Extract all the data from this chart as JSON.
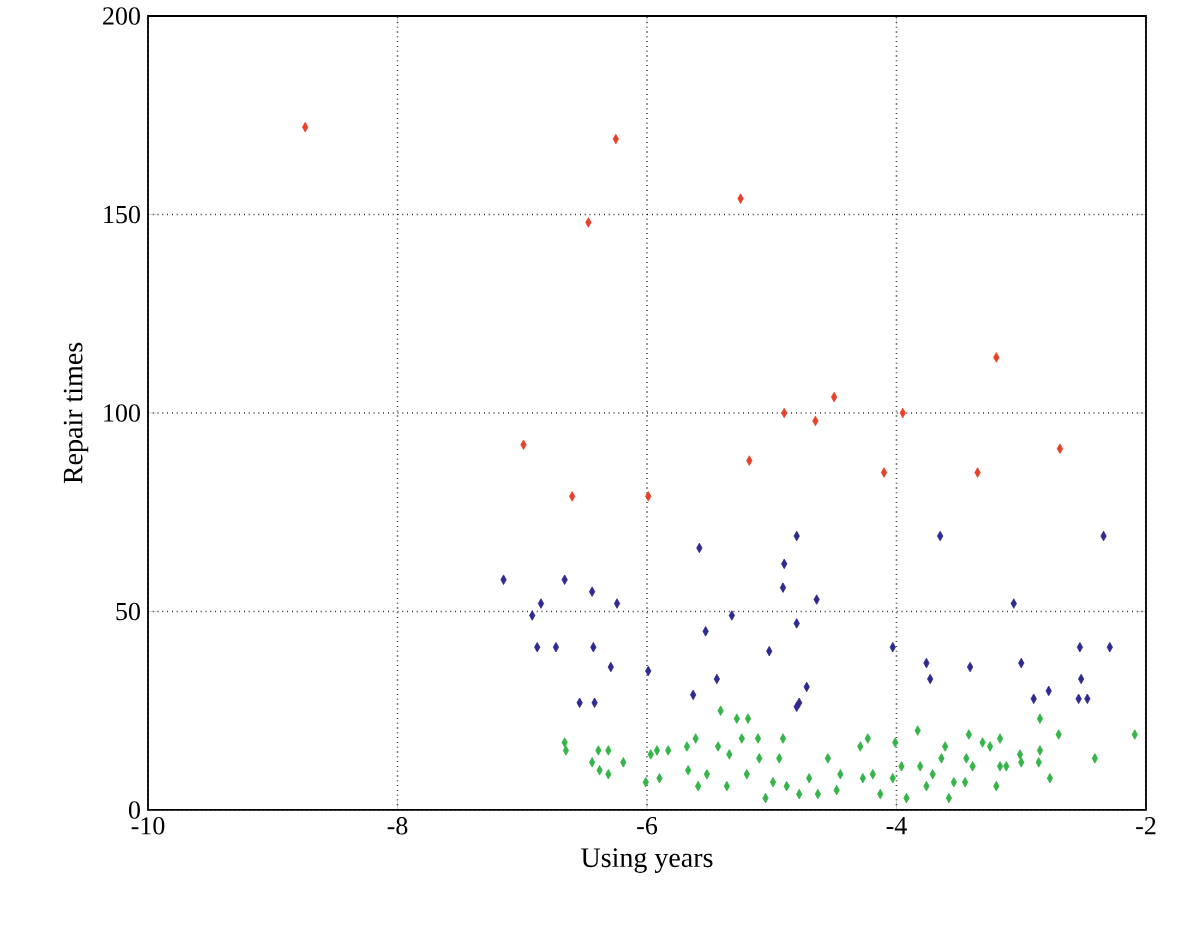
{
  "chart_data": {
    "type": "scatter",
    "xlabel": "Using years",
    "ylabel": "Repair times",
    "xlim": [
      -10,
      -2
    ],
    "ylim": [
      0,
      200
    ],
    "xticks": [
      -10,
      -8,
      -6,
      -4,
      -2
    ],
    "yticks": [
      0,
      50,
      100,
      150,
      200
    ],
    "grid": true,
    "marker": "diamond",
    "series": [
      {
        "color": "#e8412a",
        "x": [
          -8.74,
          -6.47,
          -6.25,
          -5.25,
          -6.99,
          -4.9,
          -4.65,
          -4.5,
          -3.95,
          -3.2,
          -5.18,
          -4.1,
          -3.35,
          -2.69,
          -6.6,
          -5.99
        ],
        "values": [
          172,
          148,
          169,
          154,
          92,
          100,
          98,
          104,
          100,
          114,
          88,
          85,
          85,
          91,
          79,
          79
        ]
      },
      {
        "color": "#2e2a8f",
        "x": [
          -7.15,
          -6.66,
          -6.85,
          -6.92,
          -6.44,
          -6.24,
          -6.88,
          -6.73,
          -6.43,
          -6.29,
          -5.99,
          -6.54,
          -6.42,
          -5.58,
          -5.53,
          -5.32,
          -5.44,
          -5.63,
          -5.02,
          -4.8,
          -4.9,
          -4.91,
          -4.64,
          -4.8,
          -4.72,
          -4.78,
          -4.8,
          -4.03,
          -3.65,
          -3.76,
          -3.73,
          -3.41,
          -3.06,
          -3.0,
          -2.9,
          -2.78,
          -2.53,
          -2.29,
          -2.52,
          -2.54,
          -2.47,
          -2.34
        ],
        "values": [
          58,
          58,
          52,
          49,
          55,
          52,
          41,
          41,
          41,
          36,
          35,
          27,
          27,
          66,
          45,
          49,
          33,
          29,
          40,
          69,
          62,
          56,
          53,
          47,
          31,
          27,
          26,
          41,
          69,
          37,
          33,
          36,
          52,
          37,
          28,
          30,
          41,
          41,
          33,
          28,
          28,
          69
        ]
      },
      {
        "color": "#35b44a",
        "x": [
          -6.66,
          -6.65,
          -6.44,
          -6.39,
          -6.38,
          -6.31,
          -6.31,
          -6.19,
          -6.01,
          -5.97,
          -5.92,
          -5.83,
          -5.9,
          -5.68,
          -5.61,
          -5.67,
          -5.59,
          -5.52,
          -5.43,
          -5.41,
          -5.34,
          -5.36,
          -5.28,
          -5.24,
          -5.19,
          -5.2,
          -5.11,
          -5.1,
          -5.05,
          -4.99,
          -4.94,
          -4.91,
          -4.88,
          -4.78,
          -4.7,
          -4.63,
          -4.55,
          -4.48,
          -4.45,
          -4.29,
          -4.23,
          -4.27,
          -4.19,
          -4.13,
          -4.01,
          -4.03,
          -3.96,
          -3.92,
          -3.83,
          -3.81,
          -3.76,
          -3.71,
          -3.64,
          -3.61,
          -3.58,
          -3.54,
          -3.45,
          -3.42,
          -3.44,
          -3.39,
          -3.31,
          -3.25,
          -3.2,
          -3.17,
          -3.17,
          -3.12,
          -3.01,
          -3.0,
          -2.86,
          -2.85,
          -2.85,
          -2.77,
          -2.7,
          -2.41,
          -2.09
        ],
        "values": [
          17,
          15,
          12,
          15,
          10,
          15,
          9,
          12,
          7,
          14,
          15,
          15,
          8,
          16,
          18,
          10,
          6,
          9,
          16,
          25,
          14,
          6,
          23,
          18,
          23,
          9,
          18,
          13,
          3,
          7,
          13,
          18,
          6,
          4,
          8,
          4,
          13,
          5,
          9,
          16,
          18,
          8,
          9,
          4,
          17,
          8,
          11,
          3,
          20,
          11,
          6,
          9,
          13,
          16,
          3,
          7,
          7,
          19,
          13,
          11,
          17,
          16,
          6,
          18,
          11,
          11,
          14,
          12,
          12,
          23,
          15,
          8,
          19,
          13,
          19
        ]
      }
    ]
  }
}
